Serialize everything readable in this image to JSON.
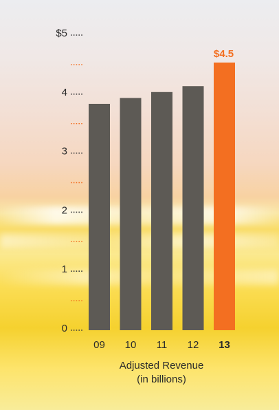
{
  "chart_data": {
    "type": "bar",
    "categories": [
      "09",
      "10",
      "11",
      "12",
      "13"
    ],
    "values": [
      3.8,
      3.9,
      4.0,
      4.1,
      4.5
    ],
    "highlight_index": 4,
    "value_label": "$4.5",
    "ylim": [
      0,
      5
    ],
    "y_ticks": [
      "0",
      "1",
      "2",
      "3",
      "4",
      "$5"
    ],
    "xlabel_line1": "Adjusted Revenue",
    "xlabel_line2": "(in billions)",
    "grid": false,
    "colors": {
      "bar": "#5d5a55",
      "highlight": "#f36f21",
      "text": "#2b2b2b",
      "tick_dots": "#3a3a3a",
      "minor_dots": "#f36f21"
    }
  }
}
